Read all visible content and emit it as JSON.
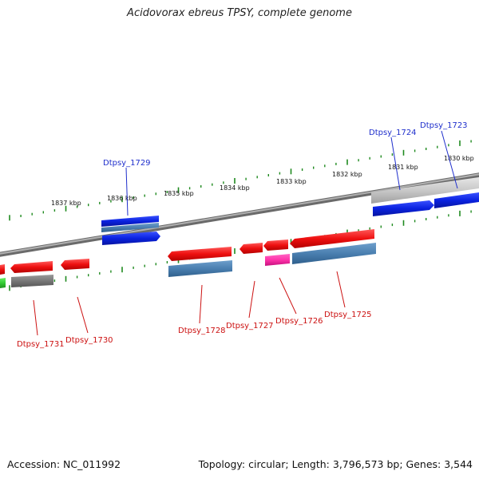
{
  "header": {
    "title": "Acidovorax ebreus TPSY, complete genome"
  },
  "footer": {
    "accession": "Accession: NC_011992",
    "summary": "Topology: circular; Length: 3,796,573 bp; Genes: 3,544"
  },
  "axis": {
    "tick_labels": [
      "1837 kbp",
      "1836 kbp",
      "1835 kbp",
      "1834 kbp",
      "1833 kbp",
      "1832 kbp",
      "1831 kbp",
      "1830 kbp"
    ]
  },
  "genes": {
    "forward": [
      "Dtpsy_1729",
      "Dtpsy_1724",
      "Dtpsy_1723"
    ],
    "reverse": [
      "Dtpsy_1731",
      "Dtpsy_1730",
      "Dtpsy_1728",
      "Dtpsy_1727",
      "Dtpsy_1726",
      "Dtpsy_1725"
    ]
  },
  "colors": {
    "cds": "#ff2020",
    "gene": "#4a7fb0",
    "forward_cds": "#0a22e0",
    "pseudogene": "#777777",
    "rna": "#ff33aa",
    "other": "#33cc33",
    "backbone": "#888888",
    "ticks": "#1f8a1f",
    "forward_label": "#1f2fcc",
    "reverse_label": "#cc1111"
  }
}
